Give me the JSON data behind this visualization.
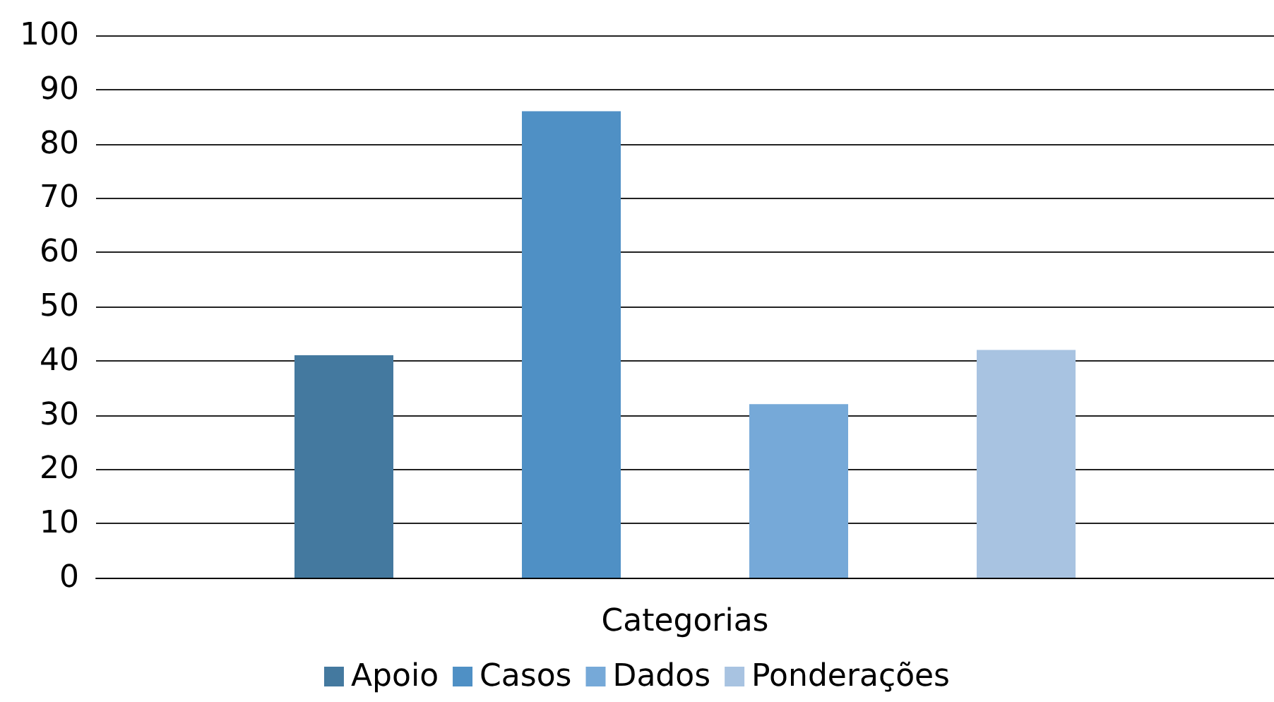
{
  "chart_data": {
    "type": "bar",
    "categories": [
      "Categorias"
    ],
    "series": [
      {
        "name": "Apoio",
        "color": "#44799f",
        "values": [
          41
        ]
      },
      {
        "name": "Casos",
        "color": "#4f90c5",
        "values": [
          86
        ]
      },
      {
        "name": "Dados",
        "color": "#76a9d8",
        "values": [
          32
        ]
      },
      {
        "name": "Ponderações",
        "color": "#a8c3e1",
        "values": [
          42
        ]
      }
    ],
    "ylim": [
      0,
      100
    ],
    "yticks": [
      0,
      10,
      20,
      30,
      40,
      50,
      60,
      70,
      80,
      90,
      100
    ],
    "grid": "y",
    "legend": "bottom"
  }
}
